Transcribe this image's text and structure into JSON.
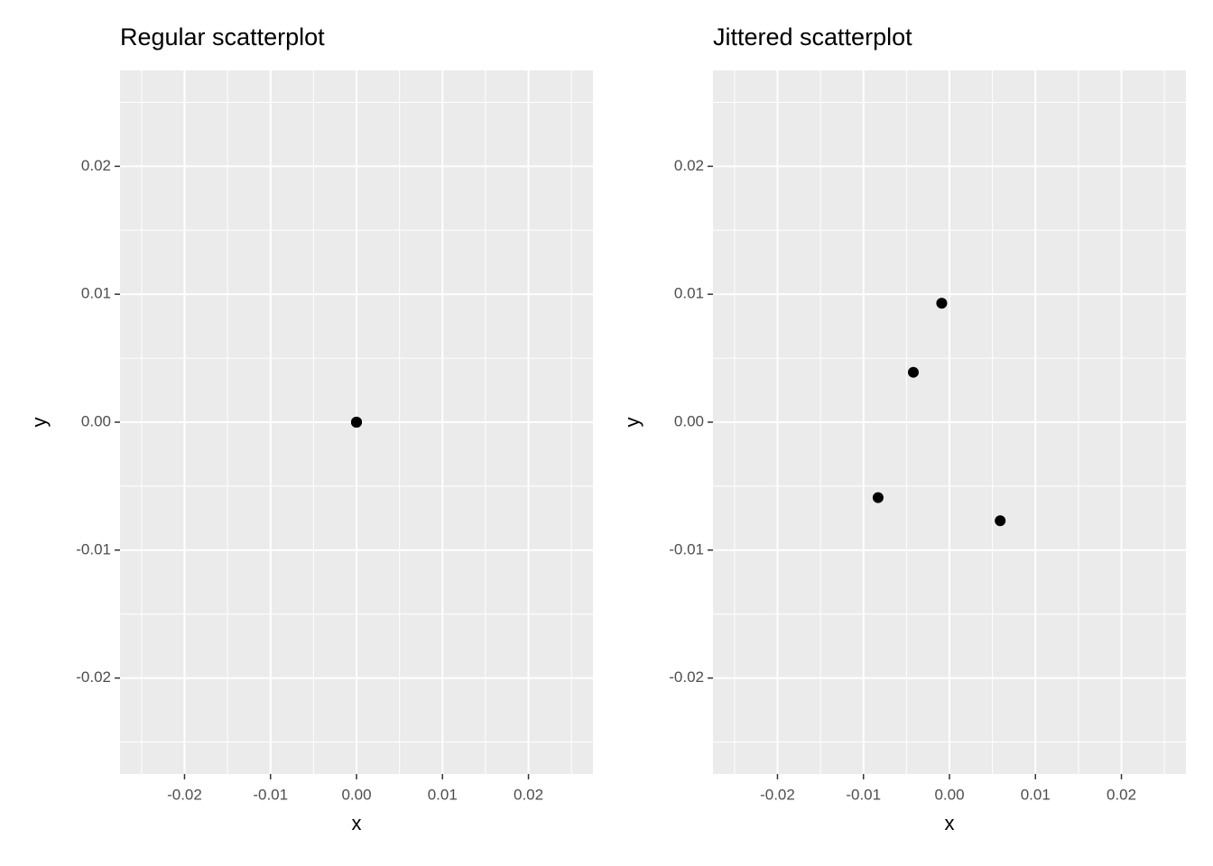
{
  "chart_data": [
    {
      "type": "scatter",
      "title": "Regular scatterplot",
      "x_label": "x",
      "y_label": "y",
      "x": [
        0,
        0,
        0,
        0
      ],
      "y": [
        0,
        0,
        0,
        0
      ],
      "color": "#000000",
      "xlim": [
        -0.0275,
        0.0275
      ],
      "ylim": [
        -0.0275,
        0.0275
      ],
      "xticks": [
        -0.02,
        -0.01,
        {
          "value": 0,
          "label": "0.00"
        },
        0.01,
        0.02
      ],
      "yticks": [
        -0.02,
        -0.01,
        {
          "value": 0,
          "label": "0.00"
        },
        0.01,
        0.02
      ],
      "x_minor_ticks": [
        -0.025,
        -0.015,
        -0.005,
        0.005,
        0.015,
        0.025
      ],
      "y_minor_ticks": [
        -0.025,
        -0.015,
        -0.005,
        0.005,
        0.015,
        0.025
      ],
      "grid": true
    },
    {
      "type": "scatter",
      "title": "Jittered scatterplot",
      "x_label": "x",
      "y_label": "y",
      "x": [
        -0.0009,
        -0.0042,
        -0.0083,
        0.0059
      ],
      "y": [
        0.0093,
        0.0039,
        -0.0059,
        -0.0077
      ],
      "color": "#000000",
      "xlim": [
        -0.0275,
        0.0275
      ],
      "ylim": [
        -0.0275,
        0.0275
      ],
      "xticks": [
        -0.02,
        -0.01,
        {
          "value": 0,
          "label": "0.00"
        },
        0.01,
        0.02
      ],
      "yticks": [
        -0.02,
        -0.01,
        {
          "value": 0,
          "label": "0.00"
        },
        0.01,
        0.02
      ],
      "x_minor_ticks": [
        -0.025,
        -0.015,
        -0.005,
        0.005,
        0.015,
        0.025
      ],
      "y_minor_ticks": [
        -0.025,
        -0.015,
        -0.005,
        0.005,
        0.015,
        0.025
      ],
      "grid": true
    }
  ]
}
